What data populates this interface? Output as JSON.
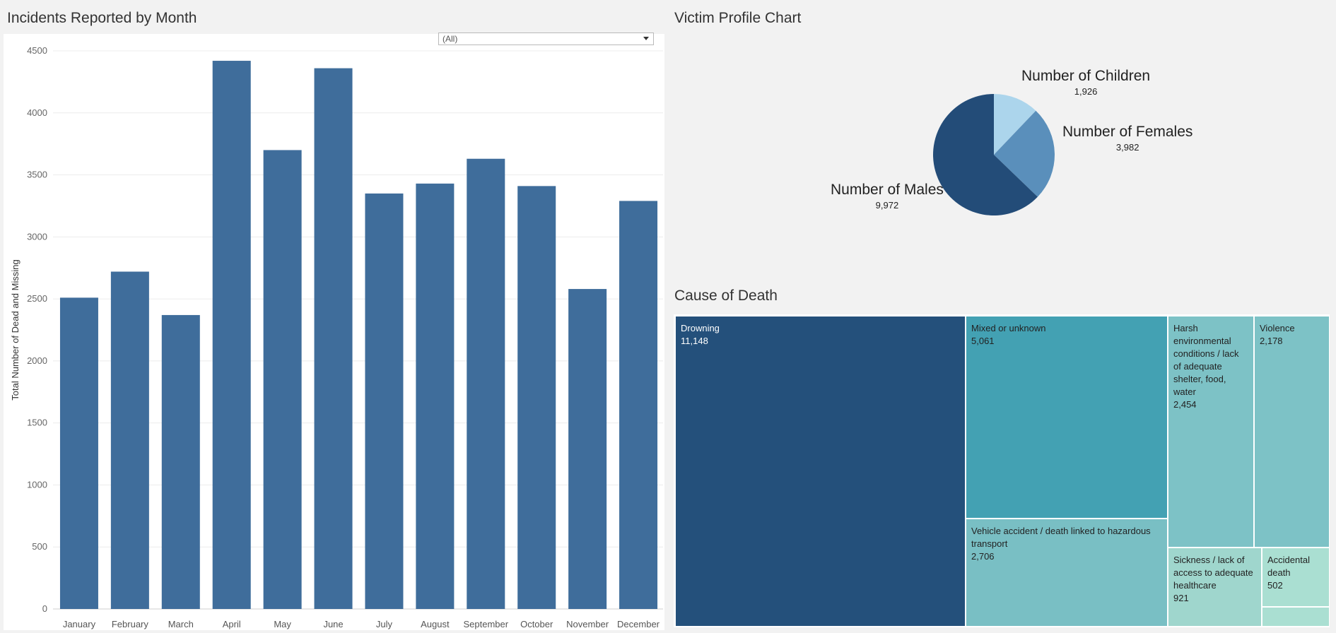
{
  "titles": {
    "incidents": "Incidents Reported by Month",
    "victim": "Victim Profile Chart",
    "cause": "Cause of Death"
  },
  "filter": {
    "value": "(All)",
    "icon": "dropdown-arrow-icon"
  },
  "chart_data": [
    {
      "type": "bar",
      "title": "Incidents Reported by Month",
      "xlabel": "",
      "ylabel": "Total Number of Dead and Missing",
      "categories": [
        "January",
        "February",
        "March",
        "April",
        "May",
        "June",
        "July",
        "August",
        "September",
        "October",
        "November",
        "December"
      ],
      "values": [
        2510,
        2720,
        2370,
        4420,
        3700,
        4360,
        3350,
        3430,
        3630,
        3410,
        2580,
        3290
      ],
      "yticks": [
        0,
        500,
        1000,
        1500,
        2000,
        2500,
        3000,
        3500,
        4000,
        4500
      ],
      "ylim": [
        0,
        4550
      ],
      "grid": true,
      "color": "#3f6d9b"
    },
    {
      "type": "pie",
      "title": "Victim Profile Chart",
      "slices": [
        {
          "label": "Number of Children",
          "value": 1926,
          "value_text": "1,926",
          "color": "#acd5ec"
        },
        {
          "label": "Number of Females",
          "value": 3982,
          "value_text": "3,982",
          "color": "#5a8fbb"
        },
        {
          "label": "Number of Males",
          "value": 9972,
          "value_text": "9,972",
          "color": "#234c78"
        }
      ]
    },
    {
      "type": "treemap",
      "title": "Cause of Death",
      "items": [
        {
          "label": "Drowning",
          "value": 11148,
          "value_text": "11,148",
          "color": "#24507b"
        },
        {
          "label": "Mixed or unknown",
          "value": 5061,
          "value_text": "5,061",
          "color": "#43a1b3"
        },
        {
          "label": "Vehicle accident / death linked to hazardous transport",
          "value": 2706,
          "value_text": "2,706",
          "color": "#79bfc4"
        },
        {
          "label": "Harsh environmental conditions / lack of adequate shelter, food, water",
          "value": 2454,
          "value_text": "2,454",
          "color": "#7dc2c6"
        },
        {
          "label": "Violence",
          "value": 2178,
          "value_text": "2,178",
          "color": "#7dc2c6"
        },
        {
          "label": "Sickness / lack of access to adequate healthcare",
          "value": 921,
          "value_text": "921",
          "color": "#9fd6cd"
        },
        {
          "label": "Accidental death",
          "value": 502,
          "value_text": "502",
          "color": "#aadfd2"
        },
        {
          "label": "",
          "value": 150,
          "value_text": "",
          "color": "#aadfd2"
        }
      ]
    }
  ]
}
